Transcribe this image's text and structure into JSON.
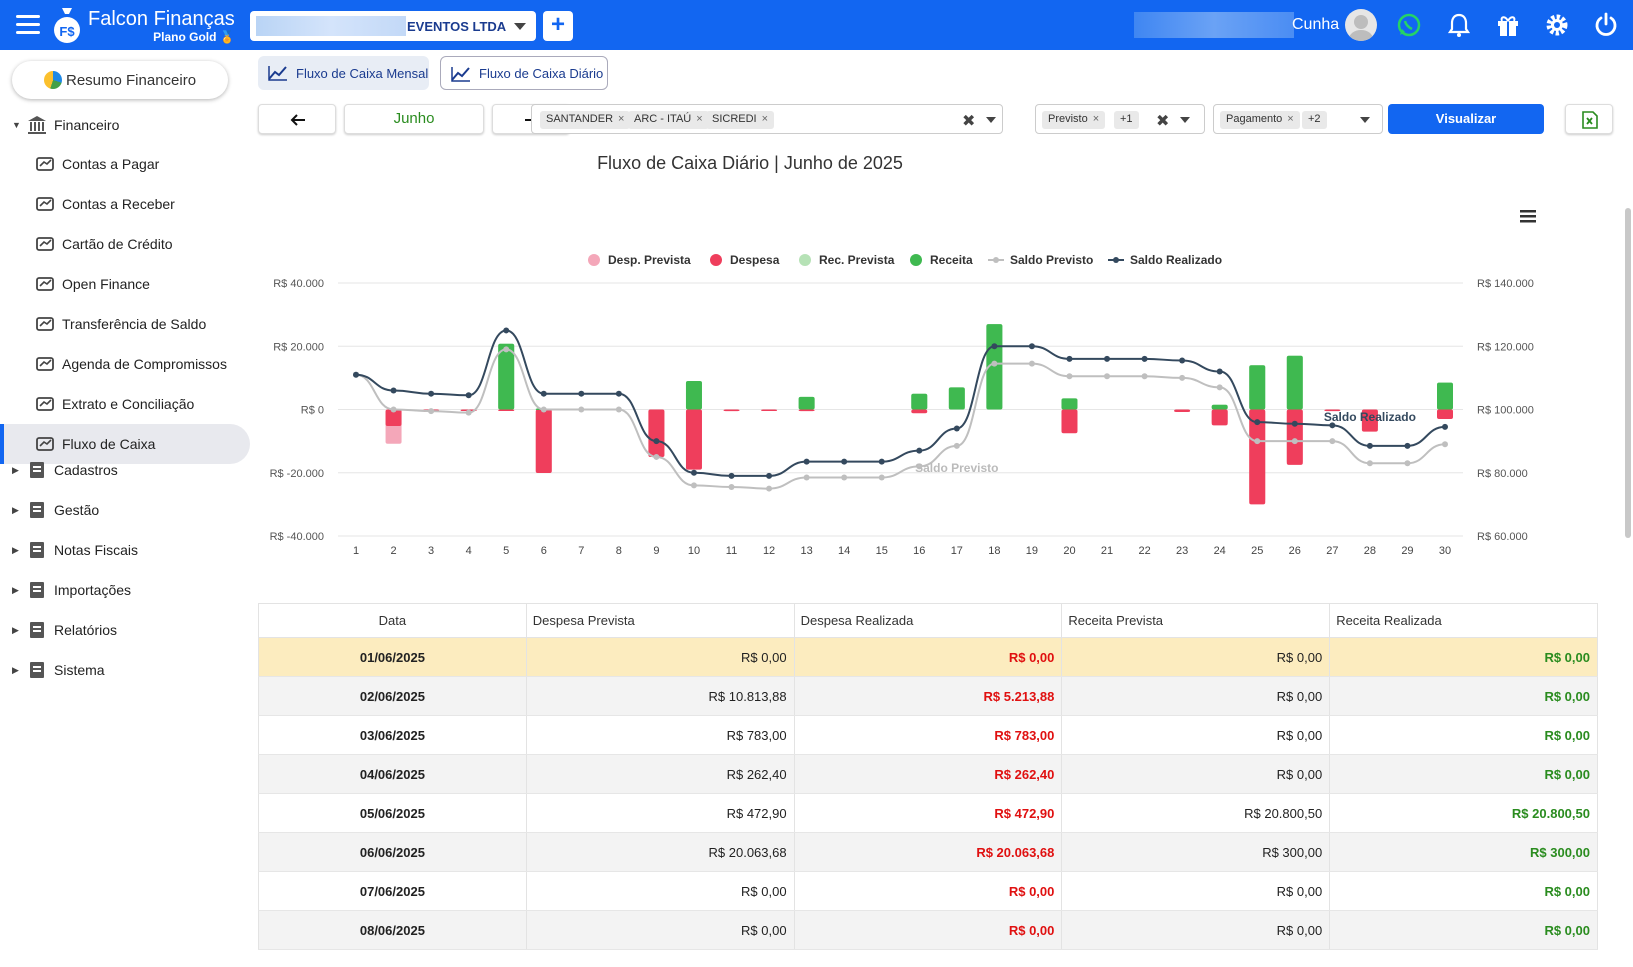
{
  "header": {
    "brand_title": "Falcon Finanças",
    "brand_plan": "Plano Gold",
    "company_name": "EVENTOS LTDA",
    "add_label": "+",
    "user_name": "Cunha",
    "icons": [
      "menu-icon",
      "whatsapp-icon",
      "bell-icon",
      "gift-icon",
      "gear-icon",
      "power-icon"
    ],
    "color": "#1266f1"
  },
  "sidebar": {
    "resumo": "Resumo Financeiro",
    "financeiro": "Financeiro",
    "sub_items": [
      {
        "label": "Contas a Pagar",
        "icon": "dollar-icon"
      },
      {
        "label": "Contas a Receber",
        "icon": "cash-icon"
      },
      {
        "label": "Cartão de Crédito",
        "icon": "credit-card-icon"
      },
      {
        "label": "Open Finance",
        "icon": "open-finance-icon"
      },
      {
        "label": "Transferência de Saldo",
        "icon": "transfer-icon"
      },
      {
        "label": "Agenda de Compromissos",
        "icon": "calendar-icon"
      },
      {
        "label": "Extrato e Conciliação",
        "icon": "statement-icon"
      },
      {
        "label": "Fluxo de Caixa",
        "icon": "chart-line-icon"
      }
    ],
    "groups": [
      {
        "label": "Cadastros",
        "icon": "boxes-icon"
      },
      {
        "label": "Gestão",
        "icon": "layers-icon"
      },
      {
        "label": "Notas Fiscais",
        "icon": "invoice-icon"
      },
      {
        "label": "Importações",
        "icon": "import-icon"
      },
      {
        "label": "Relatórios",
        "icon": "report-icon"
      },
      {
        "label": "Sistema",
        "icon": "cogs-icon"
      }
    ]
  },
  "tabs": {
    "mensal": "Fluxo de Caixa Mensal",
    "diario": "Fluxo de Caixa Diário"
  },
  "filters": {
    "month": "Junho",
    "banks": [
      "SANTANDER",
      "ARC - ITAÚ",
      "SICREDI"
    ],
    "status_chip": "Previsto",
    "status_more": "+1",
    "type_chip": "Pagamento",
    "type_more": "+2",
    "visualizar": "Visualizar"
  },
  "chart_data": {
    "type": "bar",
    "title": "Fluxo de Caixa Diário | Junho de 2025",
    "categories": [
      "1",
      "2",
      "3",
      "4",
      "5",
      "6",
      "7",
      "8",
      "9",
      "10",
      "11",
      "12",
      "13",
      "14",
      "15",
      "16",
      "17",
      "18",
      "19",
      "20",
      "21",
      "22",
      "23",
      "24",
      "25",
      "26",
      "27",
      "28",
      "29",
      "30"
    ],
    "y_left_ticks": [
      "R$ 40.000",
      "R$ 20.000",
      "R$ 0",
      "R$ -20.000",
      "R$ -40.000"
    ],
    "y_right_ticks": [
      "R$ 140.000",
      "R$ 120.000",
      "R$ 100.000",
      "R$ 80.000",
      "R$ 60.000"
    ],
    "ylim_left": [
      -40000,
      40000
    ],
    "ylim_right": [
      60000,
      140000
    ],
    "legend_position": "top-center",
    "series": [
      {
        "name": "Desp. Prevista",
        "color": "#f4a7b9",
        "values": [
          0,
          -10814,
          -783,
          -262,
          -473,
          -20064,
          0,
          0,
          -15000,
          -17000,
          0,
          0,
          0,
          0,
          0,
          0,
          0,
          0,
          0,
          -7000,
          0,
          0,
          0,
          -4500,
          -29000,
          -17000,
          0,
          -6000,
          0,
          -2500
        ]
      },
      {
        "name": "Despesa",
        "color": "#ef3e5c",
        "values": [
          0,
          -5214,
          -783,
          -262,
          -473,
          -20064,
          0,
          0,
          -15000,
          -19000,
          -500,
          -300,
          -500,
          0,
          0,
          -1200,
          0,
          0,
          0,
          -7500,
          0,
          0,
          -800,
          -5000,
          -30000,
          -17500,
          -500,
          -7000,
          0,
          -3000
        ]
      },
      {
        "name": "Rec. Prevista",
        "color": "#b6e2b6",
        "values": [
          0,
          0,
          0,
          0,
          20800,
          300,
          0,
          0,
          0,
          9000,
          0,
          0,
          4000,
          0,
          0,
          5000,
          7000,
          27000,
          0,
          3500,
          0,
          0,
          0,
          1500,
          14000,
          17000,
          0,
          0,
          0,
          8500
        ]
      },
      {
        "name": "Receita",
        "color": "#3fb950",
        "values": [
          0,
          0,
          0,
          0,
          20800,
          300,
          0,
          0,
          0,
          9000,
          0,
          0,
          4000,
          0,
          0,
          5000,
          7000,
          27000,
          0,
          3500,
          0,
          0,
          0,
          1500,
          14000,
          17000,
          0,
          0,
          0,
          8500
        ]
      },
      {
        "name": "Saldo Previsto",
        "color": "#bfbfbf",
        "axis": "right",
        "values": [
          111000,
          100000,
          99500,
          99000,
          119000,
          100000,
          100000,
          100000,
          85000,
          76000,
          75500,
          75000,
          78500,
          78500,
          78500,
          82000,
          88500,
          114500,
          114500,
          110500,
          110500,
          110500,
          110000,
          107000,
          90000,
          90000,
          90000,
          83000,
          83000,
          89000
        ]
      },
      {
        "name": "Saldo Realizado",
        "color": "#34495e",
        "axis": "right",
        "values": [
          111000,
          106000,
          105000,
          104500,
          125000,
          105000,
          105000,
          105000,
          90000,
          80000,
          79000,
          79000,
          83500,
          83500,
          83500,
          87000,
          94000,
          120000,
          120000,
          116000,
          116000,
          116000,
          115500,
          112000,
          96000,
          95500,
          95000,
          88500,
          88500,
          94500
        ]
      }
    ],
    "annotations": [
      "Saldo Previsto",
      "Saldo Realizado"
    ]
  },
  "table": {
    "headers": [
      "Data",
      "Despesa Prevista",
      "Despesa Realizada",
      "Receita Prevista",
      "Receita Realizada"
    ],
    "rows": [
      [
        "01/06/2025",
        "R$ 0,00",
        "R$ 0,00",
        "R$ 0,00",
        "R$ 0,00"
      ],
      [
        "02/06/2025",
        "R$ 10.813,88",
        "R$ 5.213,88",
        "R$ 0,00",
        "R$ 0,00"
      ],
      [
        "03/06/2025",
        "R$ 783,00",
        "R$ 783,00",
        "R$ 0,00",
        "R$ 0,00"
      ],
      [
        "04/06/2025",
        "R$ 262,40",
        "R$ 262,40",
        "R$ 0,00",
        "R$ 0,00"
      ],
      [
        "05/06/2025",
        "R$ 472,90",
        "R$ 472,90",
        "R$ 20.800,50",
        "R$ 20.800,50"
      ],
      [
        "06/06/2025",
        "R$ 20.063,68",
        "R$ 20.063,68",
        "R$ 300,00",
        "R$ 300,00"
      ],
      [
        "07/06/2025",
        "R$ 0,00",
        "R$ 0,00",
        "R$ 0,00",
        "R$ 0,00"
      ],
      [
        "08/06/2025",
        "R$ 0,00",
        "R$ 0,00",
        "R$ 0,00",
        "R$ 0,00"
      ]
    ]
  }
}
